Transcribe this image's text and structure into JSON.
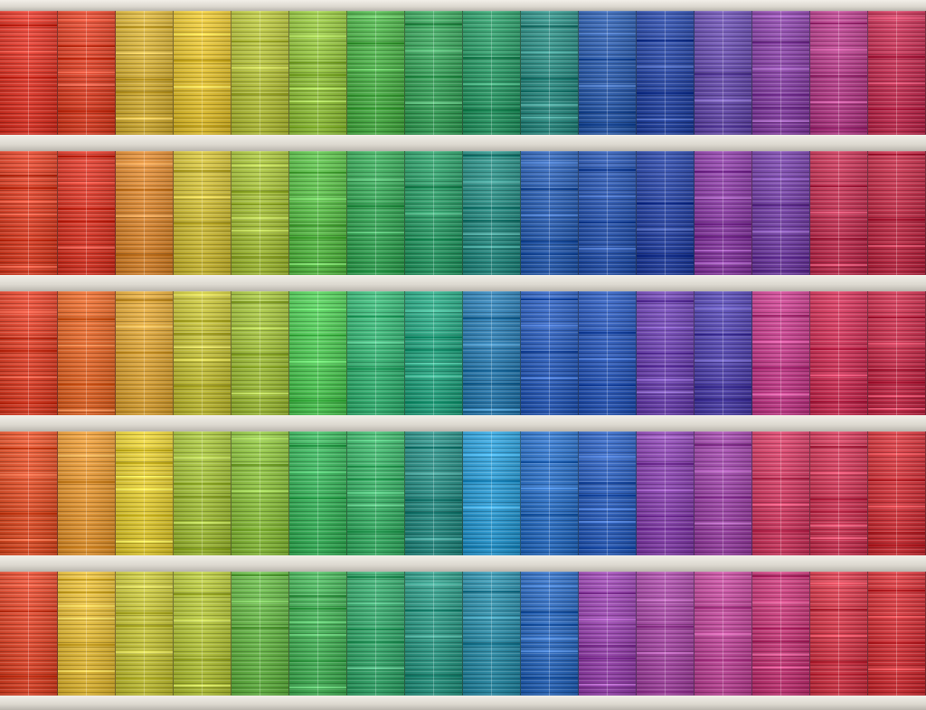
{
  "scene": {
    "subject": "",
    "rows": 5,
    "columns": 16
  },
  "palette": {
    "row_1": [
      "#e23a2c",
      "#e0452a",
      "#d8b33a",
      "#e7c534",
      "#b8c43e",
      "#96c640",
      "#4eb34a",
      "#3ca65e",
      "#2e9d6a",
      "#2f8f86",
      "#2f5fb0",
      "#2b4aa8",
      "#6a4fb0",
      "#8a44a8",
      "#b8408c",
      "#c63256"
    ],
    "row_2": [
      "#e0442a",
      "#dd3a2a",
      "#dd8a33",
      "#d2c03a",
      "#a8c23c",
      "#5cc04a",
      "#3aaa5a",
      "#2e9f6a",
      "#2b8f86",
      "#2e62b6",
      "#2c58b2",
      "#2a46a6",
      "#8c3ea6",
      "#7642a8",
      "#c53456",
      "#c22f4a"
    ],
    "row_3": [
      "#e2442c",
      "#e66a2c",
      "#e0a83a",
      "#c6c23a",
      "#a4c23e",
      "#52cc58",
      "#3ab878",
      "#2aa884",
      "#2e7fb4",
      "#2e60be",
      "#2d5bbc",
      "#7046b4",
      "#5446b0",
      "#c8408e",
      "#d1345a",
      "#c9304e"
    ],
    "row_4": [
      "#e4532c",
      "#e89a36",
      "#e6cf36",
      "#a6c23c",
      "#8ec240",
      "#3cb65e",
      "#3db46a",
      "#2b8f86",
      "#2f9fd8",
      "#2e72c8",
      "#2f62c0",
      "#8a44b0",
      "#9e46a8",
      "#d43e66",
      "#d13a5a",
      "#d2353c"
    ],
    "row_5": [
      "#e24a2e",
      "#e6bd3a",
      "#c8c63c",
      "#b6c63c",
      "#68b848",
      "#48b45a",
      "#38aa6e",
      "#2e9a86",
      "#2e8faa",
      "#2e6bc0",
      "#9a46b0",
      "#a84aa6",
      "#c24a9c",
      "#c83a7a",
      "#d63a4c",
      "#d4343a"
    ]
  }
}
